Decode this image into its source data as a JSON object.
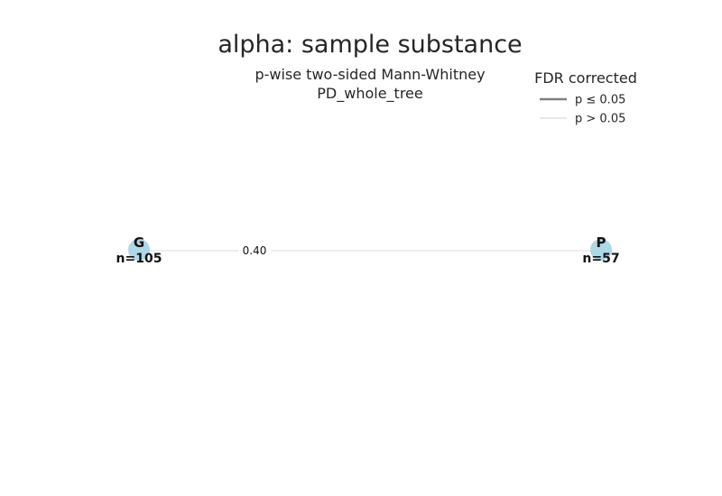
{
  "title": "alpha: sample substance",
  "subtitle": {
    "line1": "p-wise two-sided Mann-Whitney",
    "line2": "PD_whole_tree"
  },
  "legend": {
    "title": "FDR corrected",
    "items": [
      {
        "label": "p ≤ 0.05",
        "color": "#808080"
      },
      {
        "label": "p > 0.05",
        "color": "#e8e8e8"
      }
    ]
  },
  "colors": {
    "node": "#add8e6",
    "edge_nonsignificant": "#e8e8e8"
  },
  "nodes": [
    {
      "id": "G",
      "label": "G",
      "count": "n=105"
    },
    {
      "id": "P",
      "label": "P",
      "count": "n=57"
    }
  ],
  "edges": [
    {
      "from": "G",
      "to": "P",
      "p_value": "0.40",
      "significant": false
    }
  ]
}
